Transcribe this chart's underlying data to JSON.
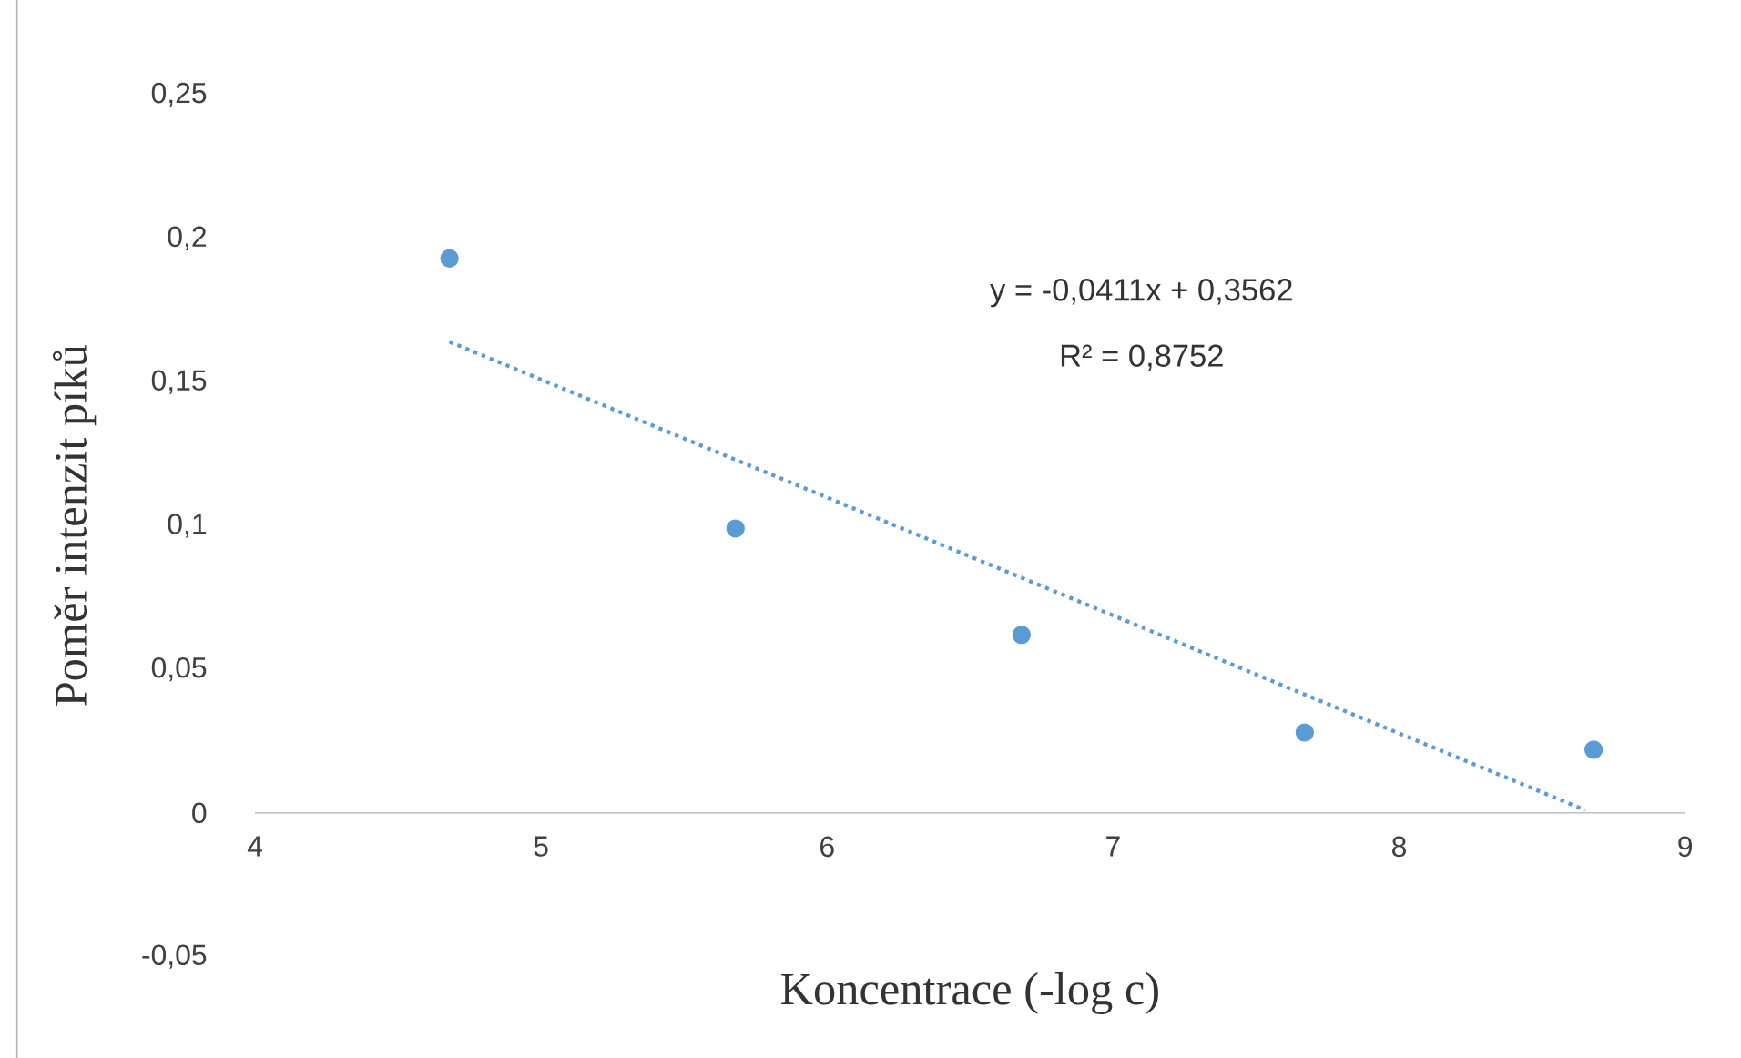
{
  "chart_data": {
    "type": "scatter",
    "xlabel": "Koncentrace  (-log c)",
    "ylabel": "Poměr intenzit  píků",
    "xlim": [
      4,
      9
    ],
    "xticks": [
      4,
      5,
      6,
      7,
      8,
      9
    ],
    "ylim": [
      -0.05,
      0.25
    ],
    "yticks": [
      {
        "value": -0.05,
        "label": "-0,05"
      },
      {
        "value": 0,
        "label": "0"
      },
      {
        "value": 0.05,
        "label": "0,05"
      },
      {
        "value": 0.1,
        "label": "0,1"
      },
      {
        "value": 0.15,
        "label": "0,15"
      },
      {
        "value": 0.2,
        "label": "0,2"
      },
      {
        "value": 0.25,
        "label": "0,25"
      }
    ],
    "series": [
      {
        "color": "#5b9bd5",
        "marker": "circle",
        "x": [
          4.68,
          5.68,
          6.68,
          7.67,
          8.68
        ],
        "values": [
          0.193,
          0.099,
          0.062,
          0.028,
          0.022
        ]
      },
      {
        "type": "line",
        "color": "#5b9bd5",
        "line_style": "dotted",
        "marker": "none",
        "x": [
          4.68,
          8.65
        ],
        "values": [
          0.164,
          0.001
        ]
      }
    ],
    "annotations": [
      "y = -0,0411x + 0,3562",
      "R² = 0,8752"
    ]
  }
}
